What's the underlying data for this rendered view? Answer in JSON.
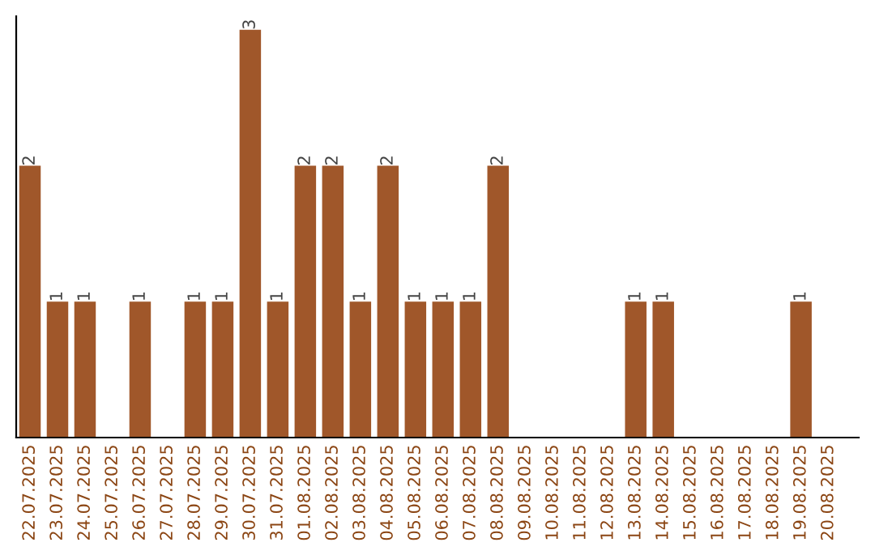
{
  "chart_data": {
    "type": "bar",
    "categories": [
      "22.07.2025",
      "23.07.2025",
      "24.07.2025",
      "25.07.2025",
      "26.07.2025",
      "27.07.2025",
      "28.07.2025",
      "29.07.2025",
      "30.07.2025",
      "31.07.2025",
      "01.08.2025",
      "02.08.2025",
      "03.08.2025",
      "04.08.2025",
      "05.08.2025",
      "06.08.2025",
      "07.08.2025",
      "08.08.2025",
      "09.08.2025",
      "10.08.2025",
      "11.08.2025",
      "12.08.2025",
      "13.08.2025",
      "14.08.2025",
      "15.08.2025",
      "16.08.2025",
      "17.08.2025",
      "18.08.2025",
      "19.08.2025",
      "20.08.2025"
    ],
    "values": [
      2,
      1,
      1,
      0,
      1,
      0,
      1,
      1,
      3,
      1,
      2,
      2,
      1,
      2,
      1,
      1,
      1,
      2,
      0,
      0,
      0,
      0,
      1,
      1,
      0,
      0,
      0,
      0,
      1,
      0
    ],
    "value_labels": [
      "2",
      "1",
      "1",
      null,
      "1",
      null,
      "1",
      "1",
      "3",
      "1",
      "2",
      "2",
      "1",
      "2",
      "1",
      "1",
      "1",
      "2",
      null,
      null,
      null,
      null,
      "1",
      "1",
      null,
      null,
      null,
      null,
      "1",
      null
    ],
    "color": "#a0572a",
    "ylim": [
      0,
      3.1
    ],
    "tick_labels": "x",
    "grid": false
  }
}
